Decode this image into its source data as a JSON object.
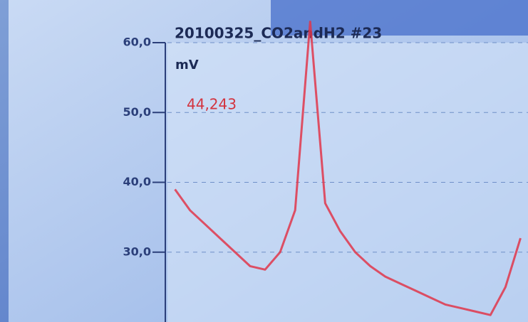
{
  "chart_data": {
    "type": "line",
    "title": "20100325_CO2andH2 #23",
    "y_label": "mV",
    "readout": "44,243",
    "categories": [
      null,
      null,
      null,
      null,
      null,
      null,
      null,
      null,
      null,
      null,
      null,
      null,
      null,
      null,
      null,
      null,
      null,
      null,
      null,
      null,
      null,
      null,
      null,
      null
    ],
    "series": [
      {
        "color": "#e0364a",
        "values": [
          39,
          36,
          34,
          32,
          30,
          28,
          27.5,
          30,
          36,
          63,
          37,
          33,
          30,
          28,
          26.5,
          25.5,
          24.5,
          23.5,
          22.5,
          22,
          21.5,
          21,
          25,
          32
        ]
      }
    ],
    "ylim": [
      20,
      60
    ],
    "yticks": [
      {
        "value": 60,
        "label": "60,0"
      },
      {
        "value": 50,
        "label": "50,0"
      },
      {
        "value": 40,
        "label": "40,0"
      },
      {
        "value": 30,
        "label": "30,0"
      }
    ],
    "grid": true
  }
}
